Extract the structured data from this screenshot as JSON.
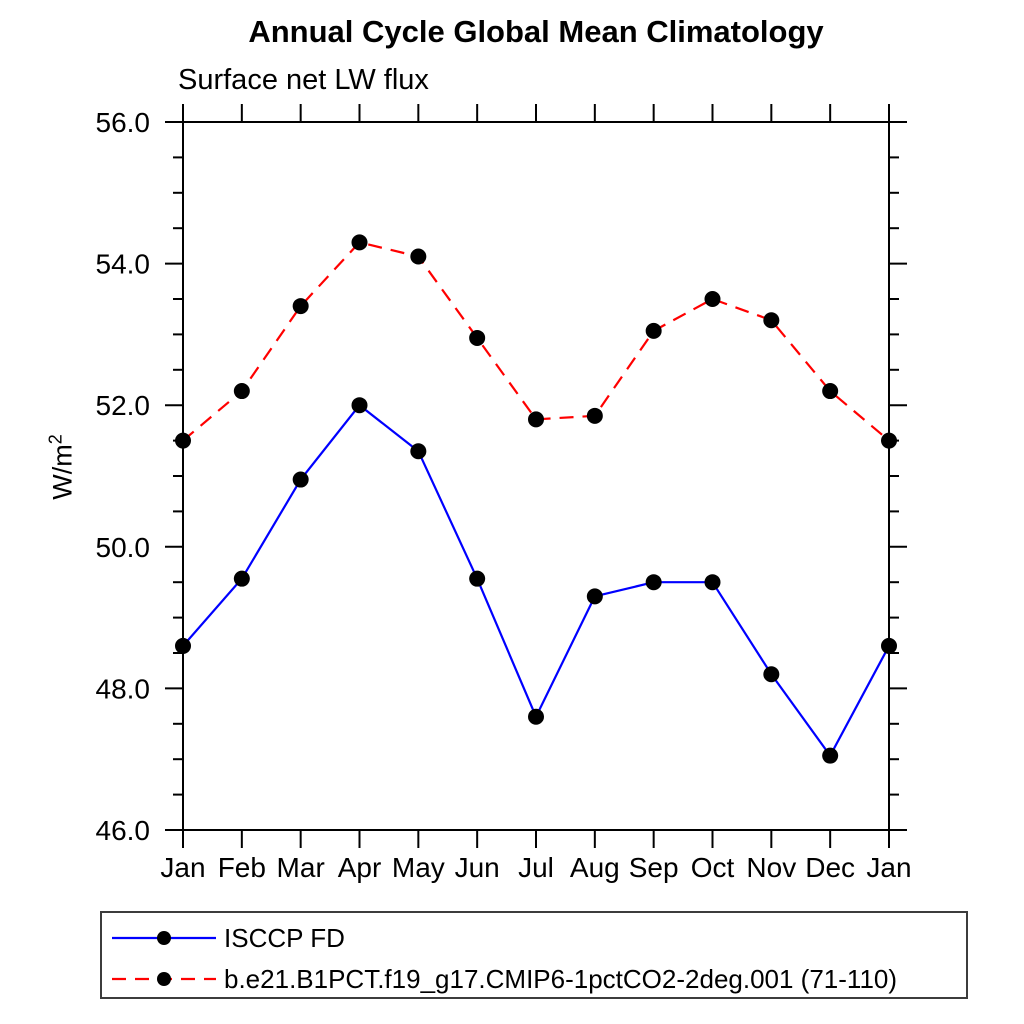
{
  "chart_data": {
    "type": "line",
    "title": "Annual Cycle Global Mean Climatology",
    "subtitle": "Surface net LW flux",
    "ylabel_base": "W/m",
    "ylabel_sup": "2",
    "x_categories": [
      "Jan",
      "Feb",
      "Mar",
      "Apr",
      "May",
      "Jun",
      "Jul",
      "Aug",
      "Sep",
      "Oct",
      "Nov",
      "Dec",
      "Jan"
    ],
    "ylim": [
      46.0,
      56.0
    ],
    "ytick_major_step": 2.0,
    "ytick_minor_step": 0.5,
    "ytick_labels": [
      "46.0",
      "48.0",
      "50.0",
      "52.0",
      "54.0",
      "56.0"
    ],
    "grid": false,
    "legend_position": "bottom-left-box",
    "marker_color": "#000000",
    "axis_color": "#000000",
    "series": [
      {
        "name": "isccp-fd",
        "label": "ISCCP FD",
        "color": "#0000ff",
        "line_style": "solid",
        "marker": "circle",
        "values": [
          48.6,
          49.55,
          50.95,
          52.0,
          51.35,
          49.55,
          47.6,
          49.3,
          49.5,
          49.5,
          48.2,
          47.05,
          48.6
        ]
      },
      {
        "name": "model-run",
        "label": "b.e21.B1PCT.f19_g17.CMIP6-1pctCO2-2deg.001 (71-110)",
        "color": "#ff0000",
        "line_style": "dashed",
        "marker": "circle",
        "values": [
          51.5,
          52.2,
          53.4,
          54.3,
          54.1,
          52.95,
          51.8,
          51.85,
          53.05,
          53.5,
          53.2,
          52.2,
          51.5
        ]
      }
    ]
  }
}
